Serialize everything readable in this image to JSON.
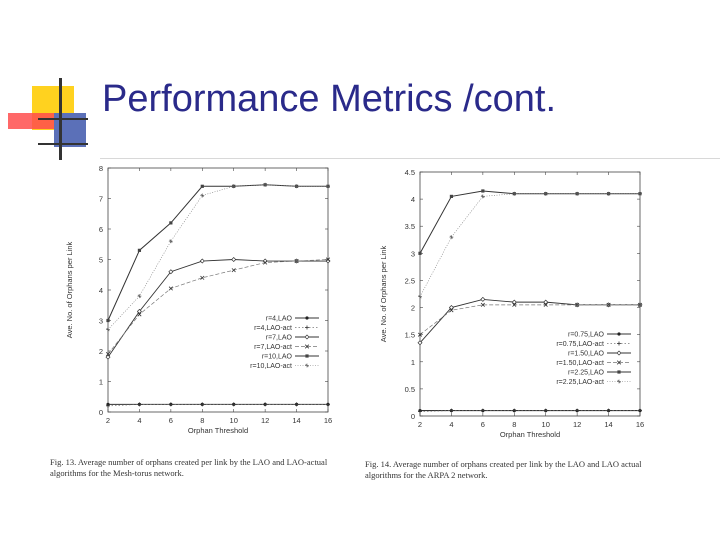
{
  "slide": {
    "title": "Performance Metrics /cont.",
    "caption_left": "Fig. 13. Average number of orphans created per link by the LAO and LAO-actual algorithms for the Mesh-torus network.",
    "caption_right": "Fig. 14. Average number of orphans created per link by the LAO and LAO actual algorithms for the ARPA 2 network.",
    "colors": {
      "title": "#2a2a8a",
      "accent_yellow": "#ffd21f",
      "accent_red": "#ff4d4d",
      "accent_blue": "#5b70b8"
    }
  },
  "chart_data": [
    {
      "type": "line",
      "xlabel": "Orphan Threshold",
      "ylabel": "Ave. No. of Orphans per Link",
      "x": [
        2,
        4,
        6,
        8,
        10,
        12,
        14,
        16
      ],
      "xticks": [
        2,
        4,
        6,
        8,
        10,
        12,
        14,
        16
      ],
      "yticks": [
        0,
        1,
        2,
        3,
        4,
        5,
        6,
        7,
        8
      ],
      "xlim": [
        2,
        16
      ],
      "ylim": [
        0,
        8
      ],
      "legend_position": "bottom-right",
      "series": [
        {
          "name": "r=4,LAO",
          "values": [
            0.25,
            0.25,
            0.25,
            0.25,
            0.25,
            0.25,
            0.25,
            0.25
          ]
        },
        {
          "name": "r=4,LAO-act",
          "values": [
            0.2,
            0.25,
            0.25,
            0.25,
            0.25,
            0.25,
            0.25,
            0.25
          ]
        },
        {
          "name": "r=7,LAO",
          "values": [
            1.8,
            3.3,
            4.6,
            4.95,
            5.0,
            4.95,
            4.95,
            4.95
          ]
        },
        {
          "name": "r=7,LAO-act",
          "values": [
            1.9,
            3.2,
            4.05,
            4.4,
            4.65,
            4.9,
            4.95,
            5.0
          ]
        },
        {
          "name": "r=10,LAO",
          "values": [
            3.0,
            5.3,
            6.2,
            7.4,
            7.4,
            7.45,
            7.4,
            7.4
          ]
        },
        {
          "name": "r=10,LAO-act",
          "values": [
            2.7,
            3.8,
            5.6,
            7.1,
            7.4,
            7.45,
            7.4,
            7.4
          ]
        }
      ]
    },
    {
      "type": "line",
      "xlabel": "Orphan Threshold",
      "ylabel": "Ave. No. of Orphans per Link",
      "x": [
        2,
        4,
        6,
        8,
        10,
        12,
        14,
        16
      ],
      "xticks": [
        2,
        4,
        6,
        8,
        10,
        12,
        14,
        16
      ],
      "yticks": [
        0,
        0.5,
        1,
        1.5,
        2,
        2.5,
        3,
        3.5,
        4,
        4.5
      ],
      "ylim": [
        0,
        4.5
      ],
      "xlim": [
        2,
        16
      ],
      "legend_position": "bottom-right",
      "series": [
        {
          "name": "r=0.75,LAO",
          "values": [
            0.1,
            0.1,
            0.1,
            0.1,
            0.1,
            0.1,
            0.1,
            0.1
          ]
        },
        {
          "name": "r=0.75,LAO-act",
          "values": [
            0.08,
            0.1,
            0.1,
            0.1,
            0.1,
            0.1,
            0.1,
            0.1
          ]
        },
        {
          "name": "r=1.50,LAO",
          "values": [
            1.35,
            2.0,
            2.15,
            2.1,
            2.1,
            2.05,
            2.05,
            2.05
          ]
        },
        {
          "name": "r=1.50,LAO-act",
          "values": [
            1.5,
            1.95,
            2.05,
            2.05,
            2.05,
            2.05,
            2.05,
            2.05
          ]
        },
        {
          "name": "r=2.25,LAO",
          "values": [
            3.0,
            4.05,
            4.15,
            4.1,
            4.1,
            4.1,
            4.1,
            4.1
          ]
        },
        {
          "name": "r=2.25,LAO-act",
          "values": [
            2.2,
            3.3,
            4.05,
            4.1,
            4.1,
            4.1,
            4.1,
            4.1
          ]
        }
      ]
    }
  ]
}
